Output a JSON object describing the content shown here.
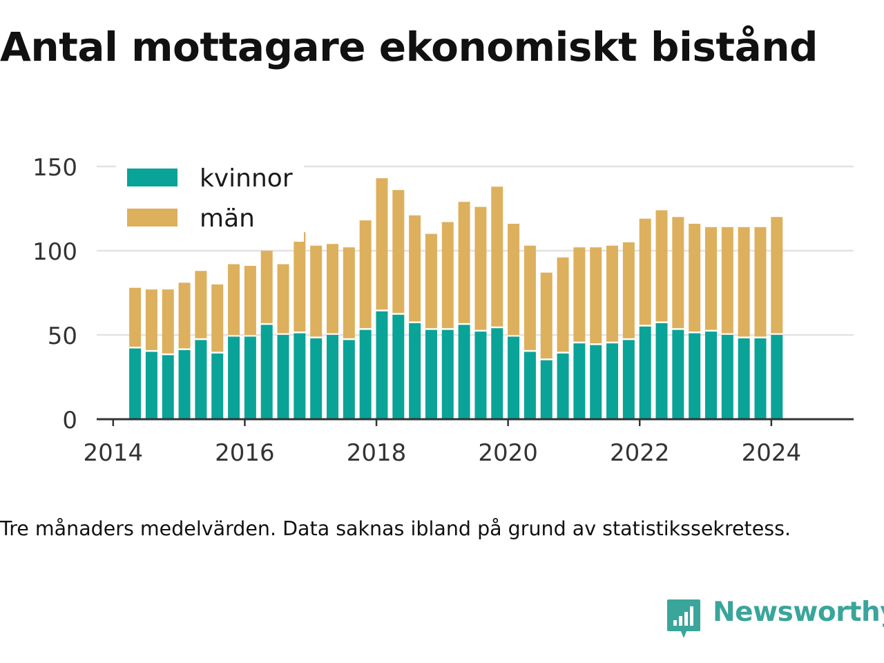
{
  "title": "Antal mottagare ekonomiskt bistånd",
  "caption": "Tre månaders medelvärden. Data saknas ibland på grund av statistikssekretess.",
  "brand": {
    "name": "Newsworthy",
    "logo": "newsworthy-logo-icon"
  },
  "colors": {
    "kvinnor": "#0aa397",
    "man": "#ddb05e",
    "grid": "#e2e2e2",
    "axis": "#333333",
    "text": "#333333"
  },
  "chart_data": {
    "type": "bar",
    "stacked": true,
    "x_tick_labels": [
      "2014",
      "2016",
      "2018",
      "2020",
      "2022",
      "2024"
    ],
    "y_tick_labels": [
      "0",
      "50",
      "100",
      "150"
    ],
    "ylim": [
      0,
      150
    ],
    "xlim": [
      "2013-10",
      "2025-04"
    ],
    "grid": true,
    "legend_position": "top-left",
    "x": [
      "2014-05",
      "2014-08",
      "2014-11",
      "2015-02",
      "2015-05",
      "2015-08",
      "2015-11",
      "2016-02",
      "2016-05",
      "2016-08",
      "2016-11",
      "2017-02",
      "2017-05",
      "2017-08",
      "2017-11",
      "2018-02",
      "2018-05",
      "2018-08",
      "2018-11",
      "2019-02",
      "2019-05",
      "2019-08",
      "2019-11",
      "2020-02",
      "2020-05",
      "2020-08",
      "2020-11",
      "2021-02",
      "2021-05",
      "2021-08",
      "2021-11",
      "2022-02",
      "2022-05",
      "2022-08",
      "2022-11",
      "2023-02",
      "2023-05",
      "2023-08",
      "2023-11",
      "2024-02"
    ],
    "series": [
      {
        "name": "kvinnor",
        "color_key": "kvinnor",
        "values": [
          42,
          40,
          38,
          41,
          47,
          39,
          49,
          49,
          56,
          50,
          51,
          48,
          50,
          47,
          53,
          64,
          62,
          57,
          53,
          53,
          56,
          52,
          54,
          49,
          40,
          35,
          39,
          45,
          44,
          45,
          47,
          55,
          57,
          53,
          51,
          52,
          50,
          48,
          48,
          50
        ]
      },
      {
        "name": "män",
        "color_key": "man",
        "values": [
          36,
          37,
          39,
          40,
          41,
          41,
          43,
          42,
          44,
          42,
          60,
          55,
          54,
          55,
          65,
          79,
          74,
          64,
          57,
          64,
          73,
          74,
          84,
          67,
          63,
          52,
          57,
          57,
          58,
          58,
          58,
          64,
          67,
          67,
          65,
          62,
          64,
          66,
          66,
          70
        ]
      }
    ]
  }
}
